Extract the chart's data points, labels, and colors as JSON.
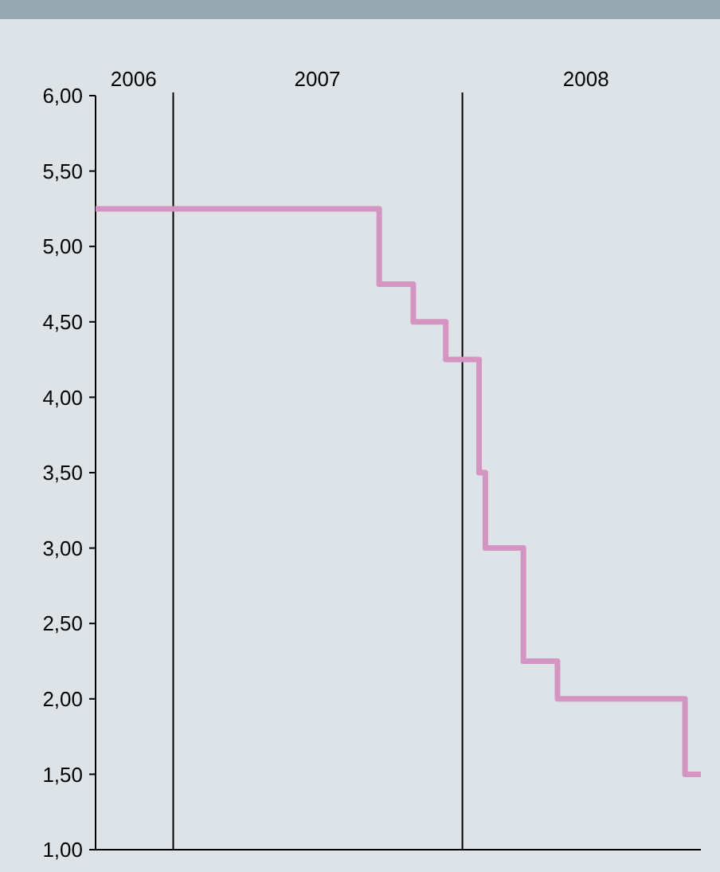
{
  "chart_data": {
    "type": "step",
    "x": [
      "2006-09-25",
      "2007-09-18",
      "2007-10-31",
      "2007-12-11",
      "2008-01-22",
      "2008-01-30",
      "2008-03-18",
      "2008-04-30",
      "2008-10-08",
      "2008-10-28"
    ],
    "series": [
      {
        "color": "#d495c2",
        "values": [
          5.25,
          4.75,
          4.5,
          4.25,
          3.5,
          3.0,
          2.25,
          2.0,
          1.5,
          1.5
        ]
      }
    ],
    "xlim": [
      "2006-09-25",
      "2008-10-28"
    ],
    "xticks": [
      {
        "value": "2006-11-12",
        "label": "2006"
      },
      {
        "value": "2007-07-02",
        "label": "2007"
      },
      {
        "value": "2008-06-05",
        "label": "2008"
      }
    ],
    "ylim": [
      1,
      6
    ],
    "yticks": [
      {
        "value": 1,
        "label": "1,00"
      },
      {
        "value": 1.5,
        "label": "1,50"
      },
      {
        "value": 2,
        "label": "2,00"
      },
      {
        "value": 2.5,
        "label": "2,50"
      },
      {
        "value": 3,
        "label": "3,00"
      },
      {
        "value": 3.5,
        "label": "3,50"
      },
      {
        "value": 4,
        "label": "4,00"
      },
      {
        "value": 4.5,
        "label": "4,50"
      },
      {
        "value": 5,
        "label": "5,00"
      },
      {
        "value": 5.5,
        "label": "5,50"
      },
      {
        "value": 6,
        "label": "6,00"
      }
    ],
    "ref_lines": [
      {
        "axis": "x",
        "value": "2007-01-01",
        "color": "#000000"
      },
      {
        "axis": "x",
        "value": "2008-01-01",
        "color": "#000000"
      }
    ],
    "grid": false,
    "marker": "none",
    "line_style": "solid"
  }
}
